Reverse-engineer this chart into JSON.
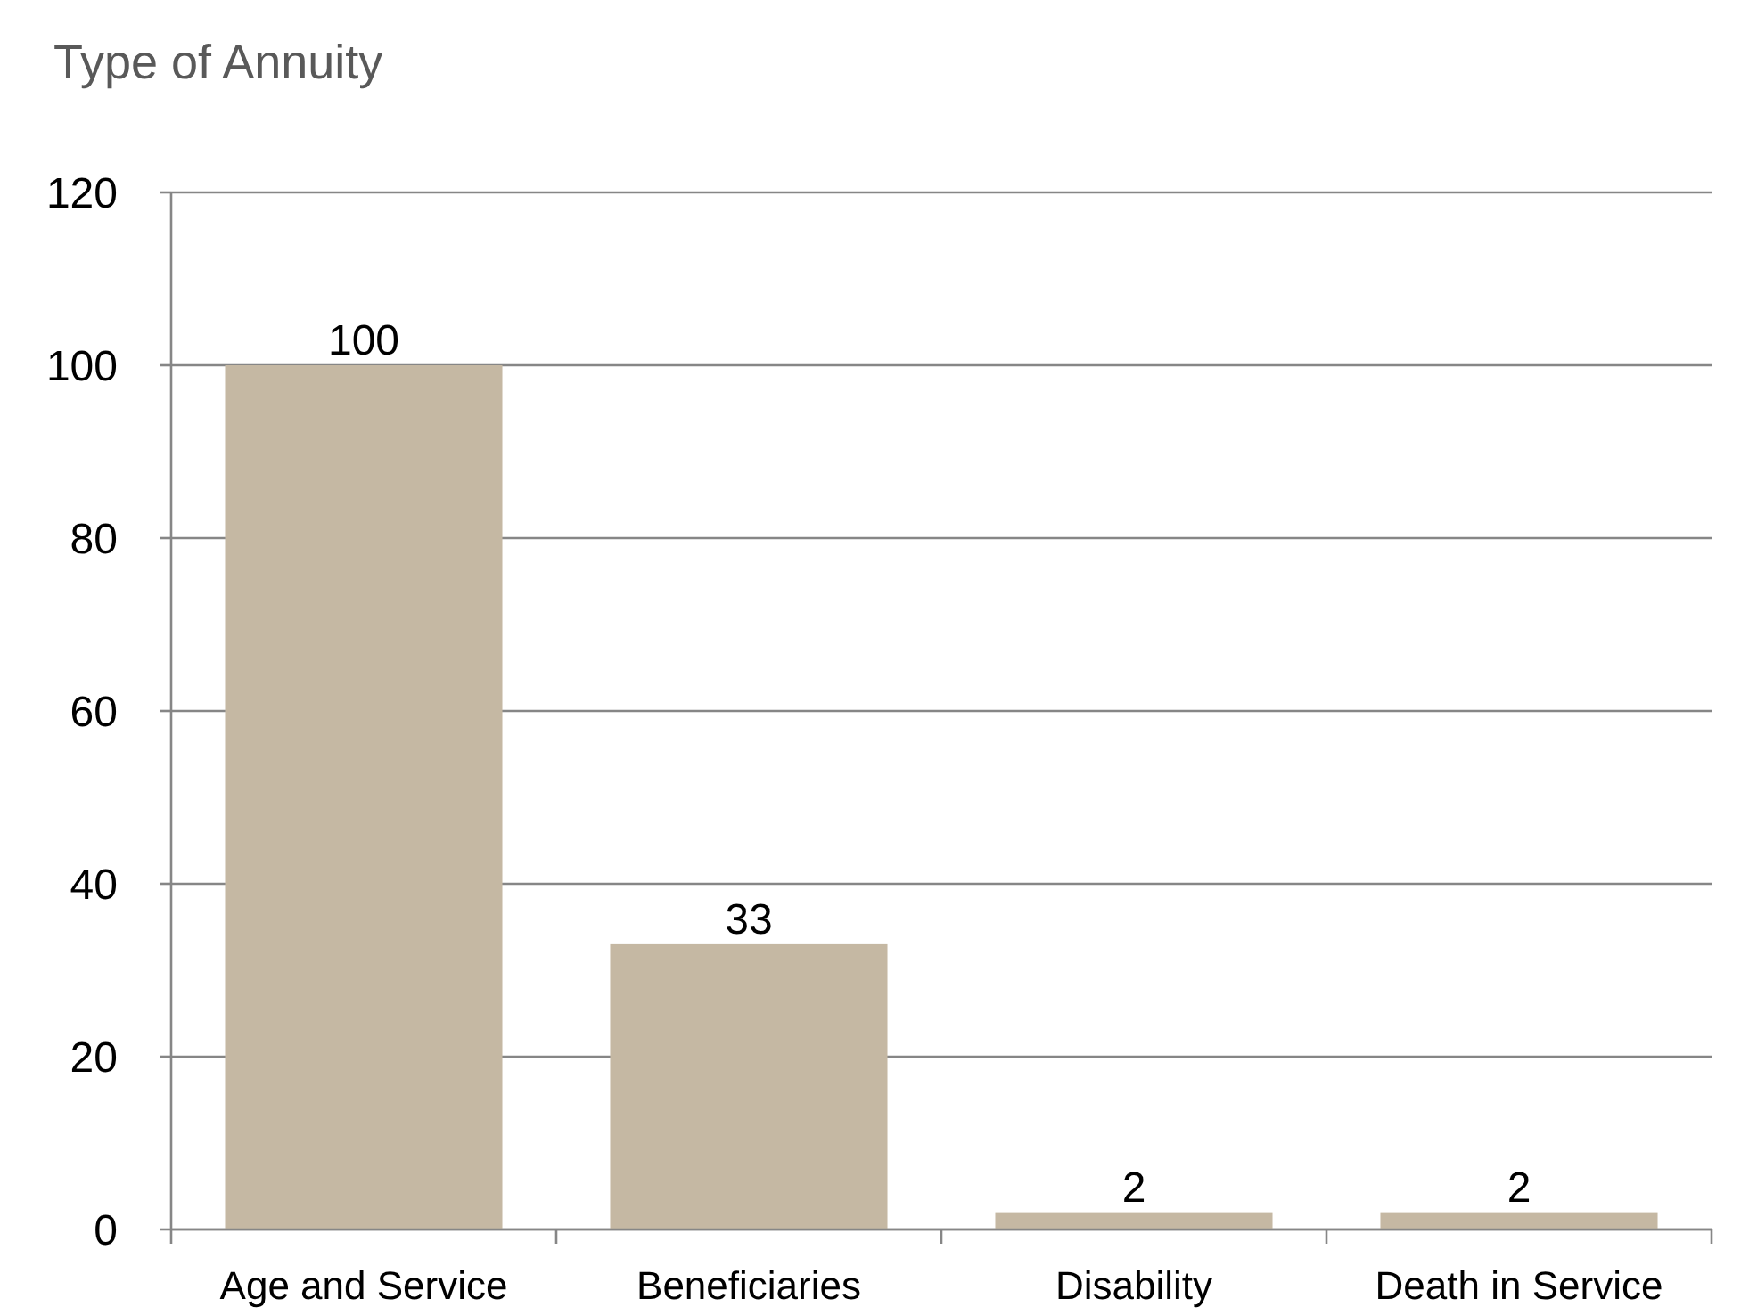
{
  "chart_data": {
    "type": "bar",
    "title": "Type of Annuity",
    "categories": [
      "Age and Service",
      "Beneficiaries",
      "Disability",
      "Death in Service"
    ],
    "values": [
      100,
      33,
      2,
      2
    ],
    "color": "#c5b8a3",
    "ylim": [
      0,
      120
    ],
    "yticks": [
      0,
      20,
      40,
      60,
      80,
      100,
      120
    ],
    "grid": "y",
    "data_labels": true
  }
}
